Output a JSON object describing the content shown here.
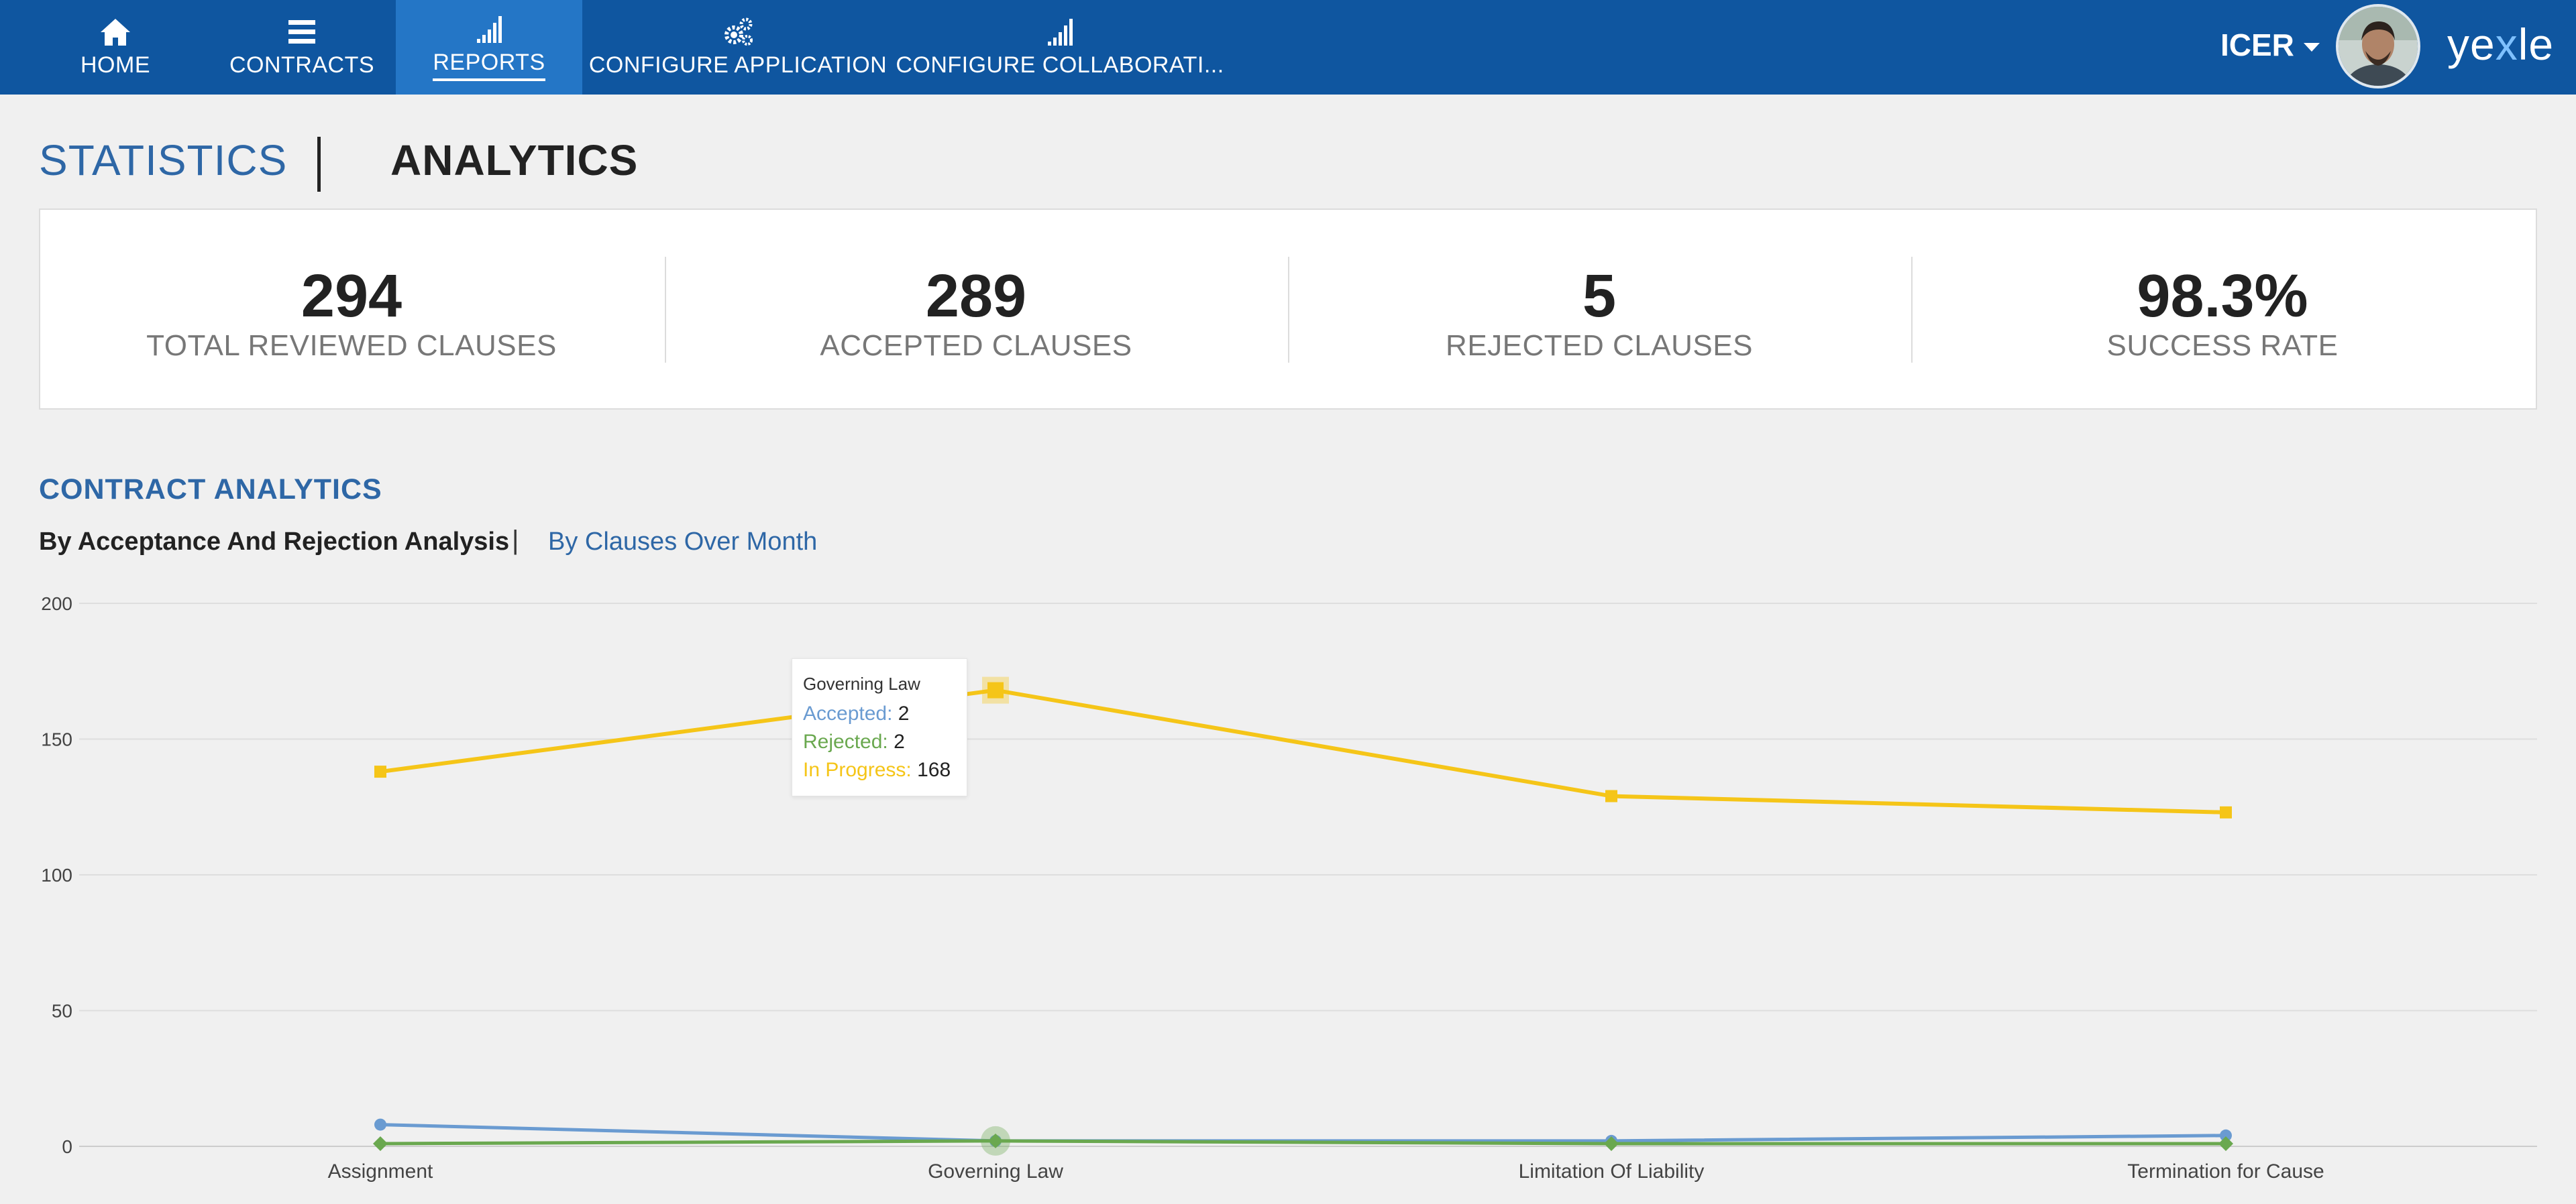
{
  "nav": {
    "items": [
      {
        "label": "HOME",
        "icon": "home-icon"
      },
      {
        "label": "CONTRACTS",
        "icon": "list-icon"
      },
      {
        "label": "REPORTS",
        "icon": "signal-bars-icon",
        "active": true
      },
      {
        "label": "CONFIGURE APPLICATION",
        "icon": "gears-icon"
      },
      {
        "label": "CONFIGURE COLLABORATI...",
        "icon": "signal-bars-icon"
      }
    ],
    "user": "ICER",
    "brand_pre": "ye",
    "brand_x": "x",
    "brand_post": "le"
  },
  "tabs": {
    "statistics": "STATISTICS",
    "analytics": "ANALYTICS"
  },
  "stats": [
    {
      "value": "294",
      "label": "TOTAL REVIEWED CLAUSES"
    },
    {
      "value": "289",
      "label": "ACCEPTED CLAUSES"
    },
    {
      "value": "5",
      "label": "REJECTED CLAUSES"
    },
    {
      "value": "98.3%",
      "label": "SUCCESS RATE"
    }
  ],
  "analytics": {
    "title": "CONTRACT ANALYTICS",
    "sub_active": "By Acceptance And Rejection Analysis",
    "sub_sep": "|",
    "sub_other": "By Clauses Over Month"
  },
  "colors": {
    "accepted": "#6a9bd1",
    "rejected": "#6aa84f",
    "in_progress": "#f5c518"
  },
  "tooltip": {
    "title": "Governing Law",
    "accepted_label": "Accepted:",
    "accepted_value": "2",
    "rejected_label": "Rejected:",
    "rejected_value": "2",
    "progress_label": "In Progress:",
    "progress_value": "168"
  },
  "chart_data": {
    "type": "line",
    "categories": [
      "Assignment",
      "Governing Law",
      "Limitation Of Liability",
      "Termination for Cause"
    ],
    "series": [
      {
        "name": "Accepted",
        "values": [
          8,
          2,
          2,
          4
        ]
      },
      {
        "name": "Rejected",
        "values": [
          1,
          2,
          1,
          1
        ]
      },
      {
        "name": "In Progress",
        "values": [
          138,
          168,
          129,
          123
        ]
      }
    ],
    "ylim": [
      0,
      200
    ],
    "yticks": [
      "0",
      "50",
      "100",
      "150",
      "200"
    ],
    "grid": true,
    "highlight_index": 1
  }
}
